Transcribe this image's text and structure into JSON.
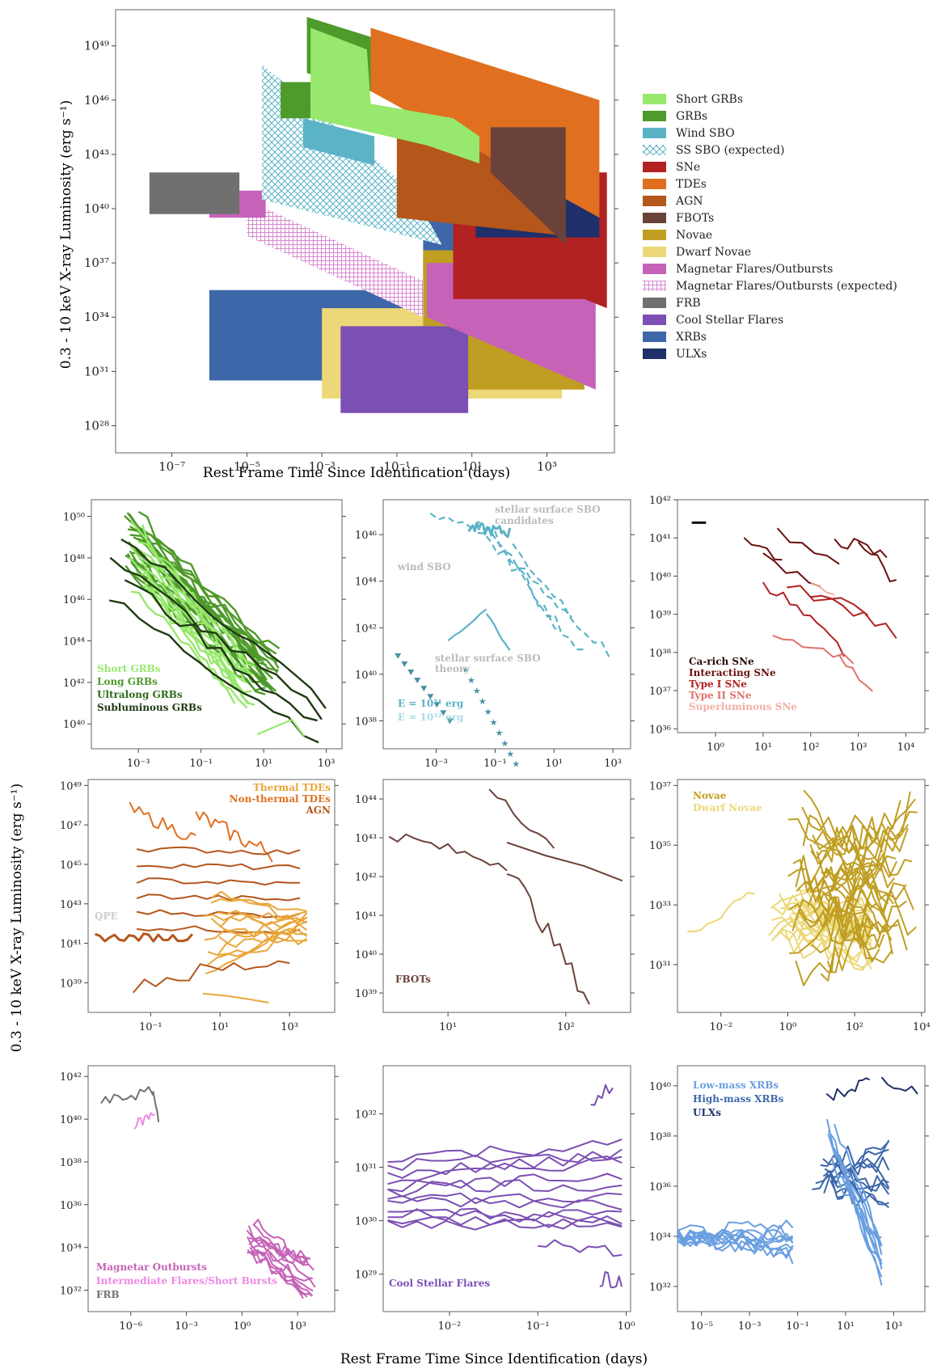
{
  "figure": {
    "main_chart_title": "",
    "shared_ylabel": "0.3 - 10 keV X-ray Luminosity (erg s⁻¹)",
    "shared_xlabel": "Rest Frame Time Since Identification (days)"
  },
  "chart_data": [
    {
      "id": "overview",
      "type": "area",
      "xlabel": "Rest Frame Time Since Identification (days)",
      "ylabel": "0.3 - 10 keV X-ray Luminosity (erg s⁻¹)",
      "xscale": "log",
      "yscale": "log",
      "xlim_log10": [
        -8.5,
        4.8
      ],
      "ylim_log10": [
        26.5,
        51
      ],
      "xticks_log10": [
        -7,
        -5,
        -3,
        -1,
        1,
        3
      ],
      "yticks_log10": [
        28,
        31,
        34,
        37,
        40,
        43,
        46,
        49
      ],
      "legend_position": "right",
      "legend": [
        {
          "label": "Short GRBs",
          "color": "#97e86c",
          "style": "solid"
        },
        {
          "label": "GRBs",
          "color": "#4e9a2a",
          "style": "solid"
        },
        {
          "label": "Wind SBO",
          "color": "#5bb3c7",
          "style": "solid"
        },
        {
          "label": "SS SBO (expected)",
          "color": "#5bb3c7",
          "style": "crosshatch"
        },
        {
          "label": "SNe",
          "color": "#b22222",
          "style": "solid"
        },
        {
          "label": "TDEs",
          "color": "#e07020",
          "style": "solid"
        },
        {
          "label": "AGN",
          "color": "#b5561b",
          "style": "solid"
        },
        {
          "label": "FBOTs",
          "color": "#6b4239",
          "style": "solid"
        },
        {
          "label": "Novae",
          "color": "#c09e22",
          "style": "solid"
        },
        {
          "label": "Dwarf Novae",
          "color": "#ecd878",
          "style": "solid"
        },
        {
          "label": "Magnetar Flares/Outbursts",
          "color": "#c662b8",
          "style": "solid"
        },
        {
          "label": "Magnetar Flares/Outbursts (expected)",
          "color": "#c662b8",
          "style": "hatch"
        },
        {
          "label": "FRB",
          "color": "#707070",
          "style": "solid"
        },
        {
          "label": "Cool Stellar Flares",
          "color": "#7b4fb3",
          "style": "solid"
        },
        {
          "label": "XRBs",
          "color": "#3d67a8",
          "style": "solid"
        },
        {
          "label": "ULXs",
          "color": "#1f2f6a",
          "style": "solid"
        }
      ],
      "regions": [
        {
          "label": "XRBs",
          "color": "#3d67a8",
          "style": "solid",
          "poly": [
            [
              -6,
              35.5
            ],
            [
              1,
              35.5
            ],
            [
              1,
              30.5
            ],
            [
              -6,
              30.5
            ]
          ]
        },
        {
          "label": "XRBs",
          "color": "#3d67a8",
          "style": "solid",
          "poly": [
            [
              -0.3,
              39.5
            ],
            [
              3.9,
              39.5
            ],
            [
              3.9,
              35.2
            ],
            [
              -0.3,
              35.2
            ]
          ]
        },
        {
          "label": "Dwarf Novae",
          "color": "#ecd878",
          "style": "solid",
          "poly": [
            [
              -3,
              34.5
            ],
            [
              3.4,
              34.5
            ],
            [
              3.4,
              29.5
            ],
            [
              -3,
              29.5
            ]
          ]
        },
        {
          "label": "Novae",
          "color": "#c09e22",
          "style": "solid",
          "poly": [
            [
              -0.3,
              37.7
            ],
            [
              4,
              37.7
            ],
            [
              4,
              30
            ],
            [
              -0.3,
              30
            ]
          ]
        },
        {
          "label": "Cool Stellar Flares",
          "color": "#7b4fb3",
          "style": "solid",
          "poly": [
            [
              -2.5,
              33.5
            ],
            [
              0.9,
              33.5
            ],
            [
              0.9,
              28.7
            ],
            [
              -2.5,
              28.7
            ]
          ]
        },
        {
          "label": "Magnetar Flares/Outbursts (expected)",
          "color": "#c662b8",
          "style": "hatch",
          "poly": [
            [
              -5,
              40.5
            ],
            [
              -0.3,
              36
            ],
            [
              -0.3,
              34
            ],
            [
              -5,
              38.5
            ]
          ]
        },
        {
          "label": "Magnetar Flares/Outbursts",
          "color": "#c662b8",
          "style": "solid",
          "poly": [
            [
              -6,
              41
            ],
            [
              -4.5,
              41
            ],
            [
              -4.5,
              39.5
            ],
            [
              -6,
              39.5
            ]
          ]
        },
        {
          "label": "Magnetar Flares/Outbursts",
          "color": "#c662b8",
          "style": "solid",
          "poly": [
            [
              -0.2,
              37
            ],
            [
              4.3,
              37
            ],
            [
              4.3,
              30
            ],
            [
              -0.2,
              34
            ]
          ]
        },
        {
          "label": "FRB",
          "color": "#707070",
          "style": "solid",
          "poly": [
            [
              -7.6,
              42
            ],
            [
              -5.2,
              42
            ],
            [
              -5.2,
              39.7
            ],
            [
              -7.6,
              39.7
            ]
          ]
        },
        {
          "label": "SS SBO (expected)",
          "color": "#5bb3c7",
          "style": "crosshatch",
          "poly": [
            [
              -4.6,
              48
            ],
            [
              -0.6,
              41
            ],
            [
              0.2,
              38
            ],
            [
              -4.6,
              40.5
            ]
          ]
        },
        {
          "label": "SNe",
          "color": "#b22222",
          "style": "solid",
          "poly": [
            [
              0.5,
              42
            ],
            [
              4.6,
              42
            ],
            [
              4.6,
              34.5
            ],
            [
              4,
              35
            ],
            [
              0.5,
              35
            ]
          ]
        },
        {
          "label": "ULXs",
          "color": "#1f2f6a",
          "style": "solid",
          "poly": [
            [
              1.1,
              40.5
            ],
            [
              4.4,
              40.5
            ],
            [
              4.4,
              38.4
            ],
            [
              1.1,
              38.4
            ]
          ]
        },
        {
          "label": "AGN",
          "color": "#b5561b",
          "style": "solid",
          "poly": [
            [
              -1,
              45
            ],
            [
              3.5,
              45
            ],
            [
              3.5,
              38.5
            ],
            [
              -1,
              39.5
            ]
          ]
        },
        {
          "label": "TDEs",
          "color": "#e07020",
          "style": "solid",
          "poly": [
            [
              -1.7,
              50
            ],
            [
              4.4,
              46
            ],
            [
              4.4,
              39.5
            ],
            [
              -1.7,
              46.5
            ]
          ]
        },
        {
          "label": "GRBs",
          "color": "#4e9a2a",
          "style": "solid",
          "poly": [
            [
              -3.4,
              50.6
            ],
            [
              -1.7,
              49.5
            ],
            [
              -1.7,
              46.5
            ],
            [
              -3.4,
              47.5
            ]
          ]
        },
        {
          "label": "GRBs",
          "color": "#4e9a2a",
          "style": "solid",
          "poly": [
            [
              -4.1,
              47
            ],
            [
              -3.3,
              47
            ],
            [
              -3.3,
              45
            ],
            [
              -4.1,
              45
            ]
          ]
        },
        {
          "label": "Wind SBO",
          "color": "#5bb3c7",
          "style": "solid",
          "poly": [
            [
              -3.5,
              45
            ],
            [
              -1.6,
              44
            ],
            [
              -1.6,
              42.4
            ],
            [
              -3.5,
              43.4
            ]
          ]
        },
        {
          "label": "Short GRBs",
          "color": "#97e86c",
          "style": "solid",
          "poly": [
            [
              -3.3,
              50
            ],
            [
              -1.8,
              48.8
            ],
            [
              -1.7,
              45.8
            ],
            [
              0.5,
              45
            ],
            [
              1.2,
              44
            ],
            [
              1.2,
              42.5
            ],
            [
              -0.2,
              43.5
            ],
            [
              -3.3,
              45
            ]
          ]
        },
        {
          "label": "FBOTs",
          "color": "#6b4239",
          "style": "solid",
          "poly": [
            [
              1.5,
              44.5
            ],
            [
              3.5,
              44.5
            ],
            [
              3.5,
              38
            ],
            [
              1.5,
              42
            ]
          ]
        }
      ]
    },
    {
      "id": "grbs",
      "type": "line",
      "xticks_log10": [
        -3,
        -1,
        1,
        3
      ],
      "yticks_log10": [
        40,
        42,
        44,
        46,
        48,
        50
      ],
      "xlim_log10": [
        -4.5,
        3.5
      ],
      "ylim_log10": [
        38.8,
        50.8
      ],
      "labels": [
        {
          "text": "Short GRBs",
          "color": "#97e86c"
        },
        {
          "text": "Long GRBs",
          "color": "#4e9a2a"
        },
        {
          "text": "Ultralong GRBs",
          "color": "#2e6b1a"
        },
        {
          "text": "Subluminous GRBs",
          "color": "#1f3a12"
        }
      ],
      "series": [
        {
          "color": "#4e9a2a",
          "n": 22,
          "x": [
            -3.5,
            1.5
          ],
          "y0": [
            47.5,
            50.3
          ],
          "y1": [
            41.3,
            43.5
          ]
        },
        {
          "color": "#97e86c",
          "n": 14,
          "x": [
            -3.3,
            0.8
          ],
          "y0": [
            46.5,
            49.5
          ],
          "y1": [
            40.8,
            42.8
          ]
        },
        {
          "color": "#1f3a12",
          "n": 4,
          "x": [
            -4.0,
            3.0
          ],
          "y0": [
            46.0,
            49.0
          ],
          "y1": [
            39.3,
            41.0
          ]
        },
        {
          "color": "#97e86c",
          "n": 1,
          "x": [
            0.8,
            2.0
          ],
          "y0": [
            39.5,
            39.5
          ],
          "y1": [
            39.6,
            39.6
          ],
          "shape": "peak"
        }
      ]
    },
    {
      "id": "sbo",
      "type": "line",
      "xticks_log10": [
        -3,
        -1,
        1,
        3
      ],
      "yticks_log10": [
        38,
        40,
        42,
        44,
        46
      ],
      "xlim_log10": [
        -4.8,
        3.6
      ],
      "ylim_log10": [
        36.8,
        47.5
      ],
      "texts": [
        {
          "text": "stellar surface SBO",
          "color": "#bbbbbb"
        },
        {
          "text": "candidates",
          "color": "#bbbbbb"
        },
        {
          "text": "wind SBO",
          "color": "#bbbbbb"
        },
        {
          "text": "stellar surface SBO",
          "color": "#bbbbbb"
        },
        {
          "text": "theory",
          "color": "#bbbbbb"
        }
      ],
      "labels": [
        {
          "text": "E = 10⁵¹ erg",
          "color": "#5bb3c7"
        },
        {
          "text": "E = 10⁵² erg",
          "color": "#a9dbe6"
        }
      ]
    },
    {
      "id": "sne",
      "type": "line",
      "xticks_log10": [
        0,
        1,
        2,
        3,
        4
      ],
      "yticks_log10": [
        36,
        37,
        38,
        39,
        40,
        41,
        42
      ],
      "xlim_log10": [
        -0.8,
        4.4
      ],
      "ylim_log10": [
        35.9,
        42
      ],
      "labels": [
        {
          "text": "Ca-rich SNe",
          "color": "#2b0a0a"
        },
        {
          "text": "Interacting SNe",
          "color": "#6b1010"
        },
        {
          "text": "Type I SNe",
          "color": "#b22222"
        },
        {
          "text": "Type II SNe",
          "color": "#e0736b"
        },
        {
          "text": "Superluminous SNe",
          "color": "#f0b0a8"
        }
      ]
    },
    {
      "id": "tdes",
      "type": "line",
      "xticks_log10": [
        -1,
        1,
        3
      ],
      "yticks_log10": [
        39,
        41,
        43,
        45,
        47,
        49
      ],
      "xlim_log10": [
        -2.8,
        4.3
      ],
      "ylim_log10": [
        37.5,
        49.3
      ],
      "labels": [
        {
          "text": "Thermal TDEs",
          "color": "#e9a63a"
        },
        {
          "text": "Non-thermal TDEs",
          "color": "#e07020"
        },
        {
          "text": "AGN",
          "color": "#b5561b"
        }
      ],
      "texts": [
        {
          "text": "QPE",
          "color": "#cccccc"
        }
      ]
    },
    {
      "id": "fbots",
      "type": "line",
      "xticks_log10": [
        1,
        2
      ],
      "yticks_log10": [
        39,
        40,
        41,
        42,
        43,
        44
      ],
      "xlim_log10": [
        0.45,
        2.55
      ],
      "ylim_log10": [
        38.5,
        44.5
      ],
      "labels": [
        {
          "text": "FBOTs",
          "color": "#6b4239"
        }
      ]
    },
    {
      "id": "novae",
      "type": "line",
      "xticks_log10": [
        -2,
        0,
        2,
        4
      ],
      "yticks_log10": [
        31,
        33,
        35,
        37
      ],
      "xlim_log10": [
        -3.3,
        4.1
      ],
      "ylim_log10": [
        29.4,
        37.2
      ],
      "labels": [
        {
          "text": "Novae",
          "color": "#c09e22"
        },
        {
          "text": "Dwarf Novae",
          "color": "#ecd878"
        }
      ]
    },
    {
      "id": "magnetars",
      "type": "line",
      "xticks_log10": [
        -6,
        -3,
        0,
        3
      ],
      "yticks_log10": [
        32,
        34,
        36,
        38,
        40,
        42
      ],
      "xlim_log10": [
        -8.3,
        5
      ],
      "ylim_log10": [
        31,
        42.5
      ],
      "labels": [
        {
          "text": "Magnetar Outbursts",
          "color": "#c662b8"
        },
        {
          "text": "Intermediate Flares/Short Bursts",
          "color": "#ee88e6"
        },
        {
          "text": "FRB",
          "color": "#707070"
        }
      ]
    },
    {
      "id": "stellar",
      "type": "line",
      "xticks_log10": [
        -2,
        -1,
        0
      ],
      "yticks_log10": [
        29,
        30,
        31,
        32
      ],
      "xlim_log10": [
        -2.75,
        0.05
      ],
      "ylim_log10": [
        28.3,
        32.9
      ],
      "labels": [
        {
          "text": "Cool Stellar Flares",
          "color": "#7b4fb3"
        }
      ]
    },
    {
      "id": "xrbs",
      "type": "line",
      "xticks_log10": [
        -5,
        -3,
        -1,
        1,
        3
      ],
      "yticks_log10": [
        32,
        34,
        36,
        38,
        40
      ],
      "xlim_log10": [
        -6,
        4.3
      ],
      "ylim_log10": [
        31,
        40.8
      ],
      "labels": [
        {
          "text": "Low-mass XRBs",
          "color": "#6a9fe0"
        },
        {
          "text": "High-mass XRBs",
          "color": "#3d67a8"
        },
        {
          "text": "ULXs",
          "color": "#1f2f6a"
        }
      ]
    }
  ]
}
